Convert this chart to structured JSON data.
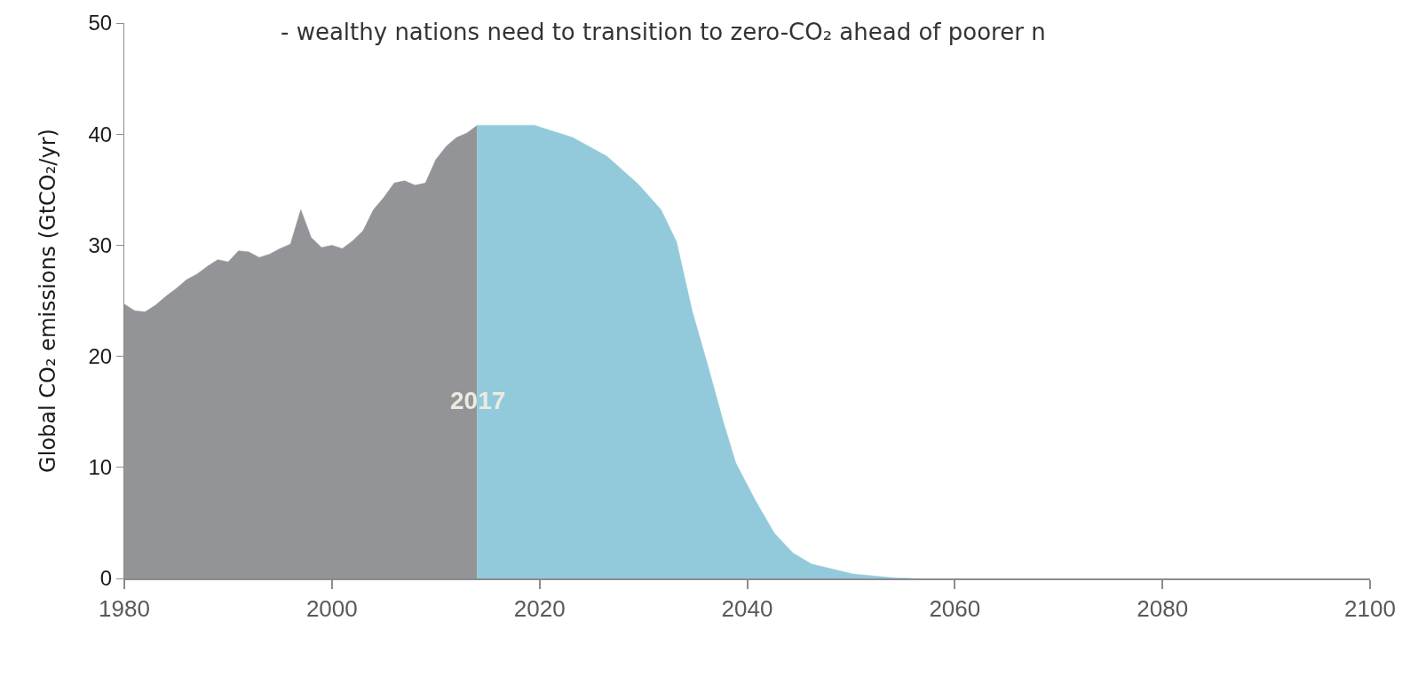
{
  "chart_data": {
    "type": "area",
    "title": "- wealthy nations need to transition to zero-CO₂ ahead of poorer n",
    "ylabel": "Global CO₂ emissions (GtCO₂/yr)",
    "annotations": [
      {
        "text": "2017",
        "x": 2014,
        "y": 16
      }
    ],
    "series": [
      {
        "color": "#939498",
        "x": [
          1980,
          1981,
          1982,
          1983,
          1984,
          1985,
          1986,
          1987,
          1988,
          1989,
          1990,
          1991,
          1992,
          1993,
          1994,
          1995,
          1996,
          1997,
          1998,
          1999,
          2000,
          2001,
          2002,
          2003,
          2004,
          2005,
          2006,
          2007,
          2008,
          2009,
          2010,
          2011,
          2012,
          2013,
          2014
        ],
        "values": [
          24.7,
          24.1,
          24.0,
          24.6,
          25.4,
          26.1,
          26.9,
          27.4,
          28.1,
          28.7,
          28.5,
          29.5,
          29.4,
          28.9,
          29.2,
          29.7,
          30.1,
          33.2,
          30.7,
          29.8,
          30.0,
          29.7,
          30.4,
          31.3,
          33.2,
          34.3,
          35.6,
          35.8,
          35.4,
          35.6,
          37.7,
          38.9,
          39.7,
          40.1,
          40.8
        ]
      },
      {
        "color": "#92cadb",
        "x": [
          2014,
          2019.5,
          2023.2,
          2026.5,
          2029.5,
          2031.7,
          2033.2,
          2034.7,
          2036.2,
          2037.7,
          2038.9,
          2040.8,
          2042.6,
          2044.4,
          2046.2,
          2050.2,
          2054.1,
          2056
        ],
        "values": [
          40.8,
          40.8,
          39.7,
          38.0,
          35.5,
          33.2,
          30.3,
          24.1,
          19.2,
          14.1,
          10.4,
          7.0,
          4.1,
          2.3,
          1.3,
          0.4,
          0.06,
          0
        ]
      }
    ],
    "xlim": [
      1980,
      2100
    ],
    "xticks": [
      1980,
      2000,
      2020,
      2040,
      2060,
      2080,
      2100
    ],
    "ylim": [
      0,
      50
    ],
    "yticks": [
      0,
      10,
      20,
      30,
      40,
      50
    ]
  }
}
